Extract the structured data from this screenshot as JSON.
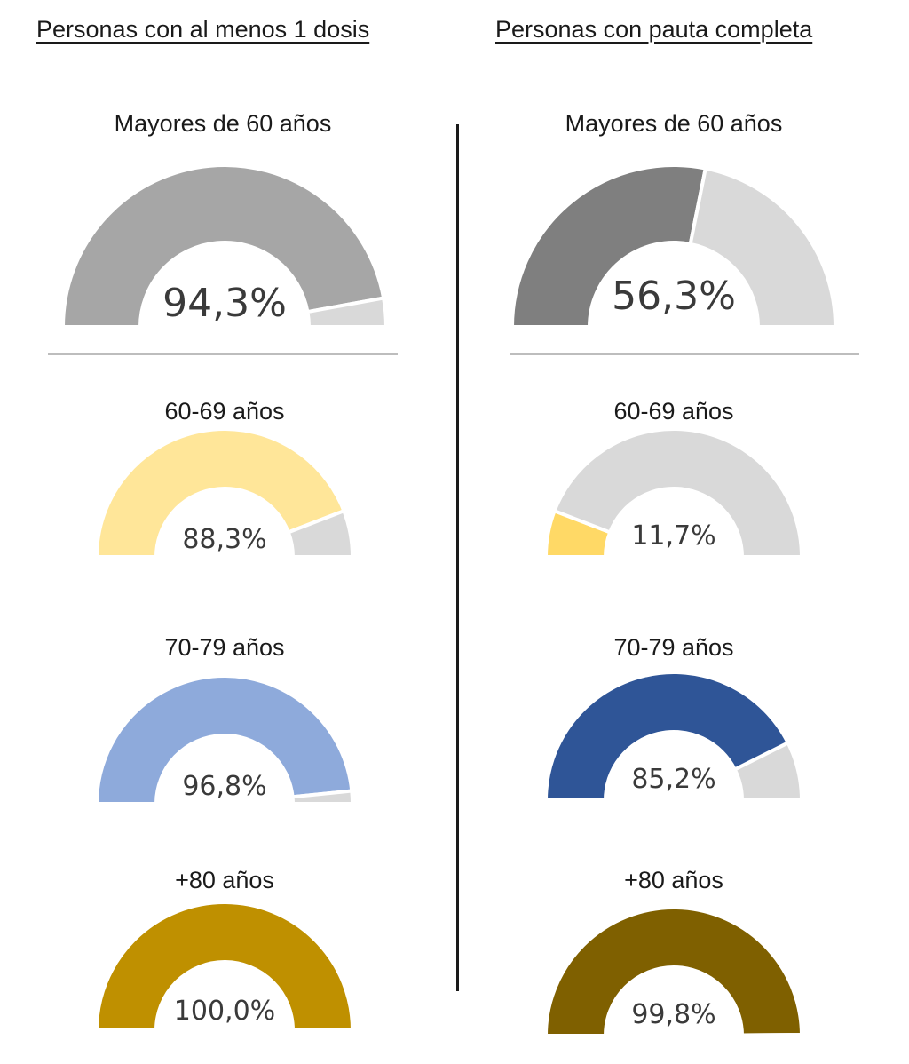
{
  "columns": [
    {
      "heading": "Personas con al menos 1 dosis"
    },
    {
      "heading": "Personas con pauta completa"
    }
  ],
  "colors": {
    "remainder": "#d9d9d9",
    "text": "#1a1a1a",
    "divider": "#1a1a1a"
  },
  "chart_data": [
    {
      "type": "pie",
      "subtype": "half-donut",
      "column": "Personas con al menos 1 dosis",
      "title": "Mayores de 60 años",
      "value": 94.3,
      "label": "94,3%",
      "color": "#a6a6a6"
    },
    {
      "type": "pie",
      "subtype": "half-donut",
      "column": "Personas con al menos 1 dosis",
      "title": "60-69 años",
      "value": 88.3,
      "label": "88,3%",
      "color": "#ffe699"
    },
    {
      "type": "pie",
      "subtype": "half-donut",
      "column": "Personas con al menos 1 dosis",
      "title": "70-79 años",
      "value": 96.8,
      "label": "96,8%",
      "color": "#8eaadb"
    },
    {
      "type": "pie",
      "subtype": "half-donut",
      "column": "Personas con al menos 1 dosis",
      "title": "+80 años",
      "value": 100.0,
      "label": "100,0%",
      "color": "#bf9000"
    },
    {
      "type": "pie",
      "subtype": "half-donut",
      "column": "Personas con pauta completa",
      "title": "Mayores de 60 años",
      "value": 56.3,
      "label": "56,3%",
      "color": "#7f7f7f"
    },
    {
      "type": "pie",
      "subtype": "half-donut",
      "column": "Personas con pauta completa",
      "title": "60-69 años",
      "value": 11.7,
      "label": "11,7%",
      "color": "#ffd966"
    },
    {
      "type": "pie",
      "subtype": "half-donut",
      "column": "Personas con pauta completa",
      "title": "70-79 años",
      "value": 85.2,
      "label": "85,2%",
      "color": "#2f5597"
    },
    {
      "type": "pie",
      "subtype": "half-donut",
      "column": "Personas con pauta completa",
      "title": "+80 años",
      "value": 99.8,
      "label": "99,8%",
      "color": "#7f6000"
    }
  ]
}
